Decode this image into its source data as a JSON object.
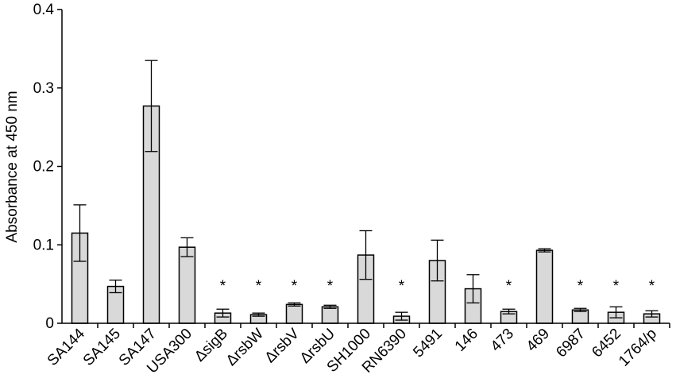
{
  "chart_data": {
    "type": "bar",
    "title": "",
    "xlabel": "",
    "ylabel": "Absorbance at 450 nm",
    "ylim": [
      0,
      0.4
    ],
    "yticks": [
      "0",
      "0.1",
      "0.2",
      "0.3",
      "0.4"
    ],
    "grid": false,
    "bar_color": "#d9d9d9",
    "categories": [
      "SA144",
      "SA145",
      "SA147",
      "USA300",
      "ΔsigB",
      "ΔrsbW",
      "ΔrsbV",
      "ΔrsbU",
      "SH1000",
      "RN6390",
      "5491",
      "146",
      "473",
      "469",
      "6987",
      "6452",
      "1764/p"
    ],
    "values": [
      0.115,
      0.047,
      0.277,
      0.097,
      0.013,
      0.011,
      0.024,
      0.021,
      0.087,
      0.009,
      0.08,
      0.044,
      0.015,
      0.093,
      0.017,
      0.014,
      0.012
    ],
    "errors": [
      0.036,
      0.008,
      0.058,
      0.012,
      0.005,
      0.002,
      0.002,
      0.002,
      0.031,
      0.005,
      0.026,
      0.018,
      0.003,
      0.002,
      0.002,
      0.007,
      0.004
    ],
    "significance": [
      "",
      "",
      "",
      "",
      "*",
      "*",
      "*",
      "*",
      "",
      "*",
      "",
      "",
      "*",
      "",
      "*",
      "*",
      "*"
    ]
  }
}
